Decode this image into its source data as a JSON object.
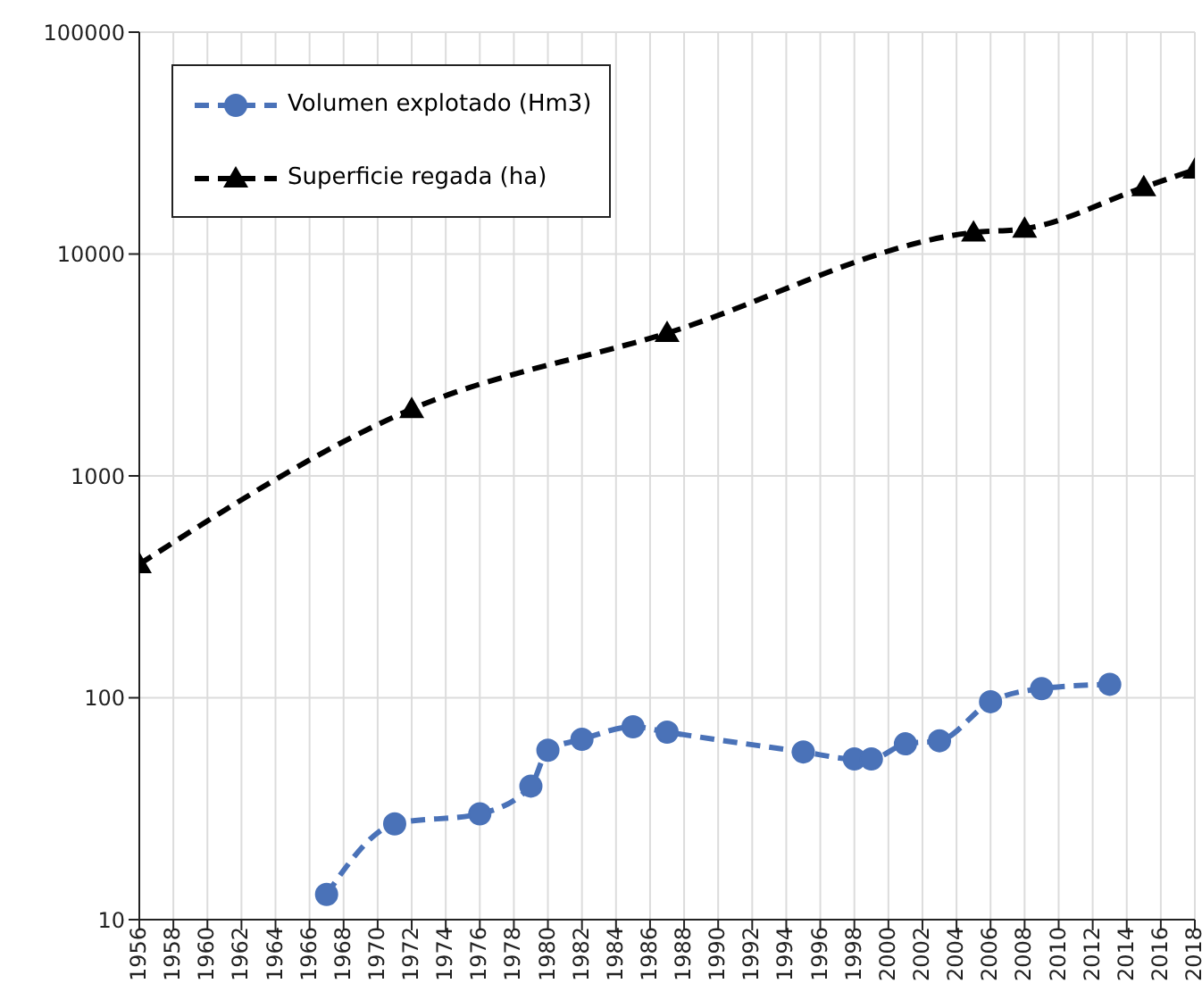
{
  "chart_data": {
    "type": "line",
    "log": "y",
    "grid": true,
    "legend": "top left",
    "line_style": "dashed",
    "xlim": [
      1956,
      2018
    ],
    "xticks": [
      1956,
      1958,
      1960,
      1962,
      1964,
      1966,
      1968,
      1970,
      1972,
      1974,
      1976,
      1978,
      1980,
      1982,
      1984,
      1986,
      1988,
      1990,
      1992,
      1994,
      1996,
      1998,
      2000,
      2002,
      2004,
      2006,
      2008,
      2010,
      2012,
      2014,
      2016,
      2018
    ],
    "ylim": [
      10,
      100000
    ],
    "yticks": [
      10,
      100,
      1000,
      10000,
      100000
    ],
    "series": [
      {
        "name": "Volumen explotado (Hm3)",
        "color": "#4a72b8",
        "marker": "circle",
        "x": [
          1967,
          1971,
          1976,
          1979,
          1980,
          1982,
          1985,
          1987,
          1995,
          1998,
          1999,
          2001,
          2003,
          2006,
          2009,
          2013
        ],
        "values": [
          13,
          27,
          30,
          40,
          58,
          65,
          74,
          70,
          57,
          53,
          53,
          62,
          64,
          96,
          110,
          115
        ]
      },
      {
        "name": "Superficie regada (ha)",
        "color": "#000000",
        "marker": "triangle",
        "x": [
          1956,
          1972,
          1987,
          2005,
          2008,
          2015,
          2018
        ],
        "values": [
          400,
          2000,
          4400,
          12500,
          13000,
          20000,
          24000
        ]
      }
    ]
  }
}
